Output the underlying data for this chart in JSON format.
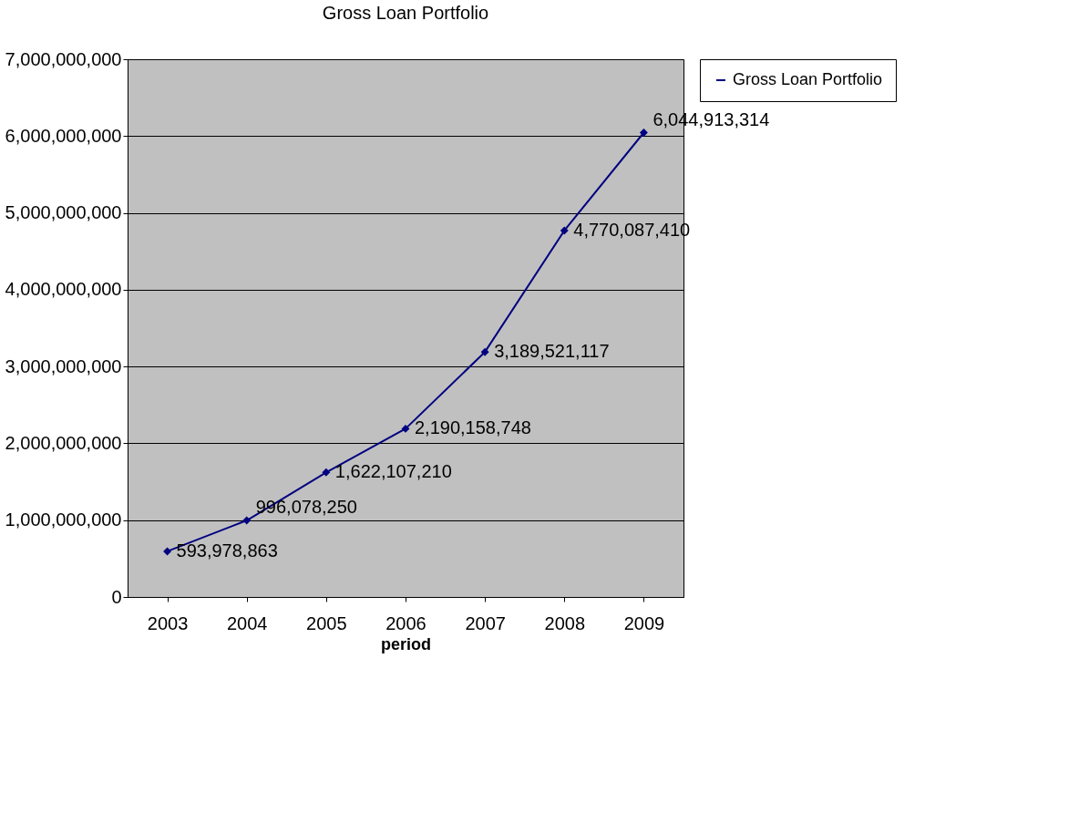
{
  "chart_data": {
    "type": "line",
    "title": "Gross Loan Portfolio",
    "xlabel": "period",
    "categories": [
      "2003",
      "2004",
      "2005",
      "2006",
      "2007",
      "2008",
      "2009"
    ],
    "series": [
      {
        "name": "Gross Loan Portfolio",
        "color": "#000080",
        "values": [
          593978863,
          996078250,
          1622107210,
          2190158748,
          3189521117,
          4770087410,
          6044913314
        ],
        "value_labels": [
          "593,978,863",
          "996,078,250",
          "1,622,107,210",
          "2,190,158,748",
          "3,189,521,117",
          "4,770,087,410",
          "6,044,913,314"
        ]
      }
    ],
    "ylim": [
      0,
      7000000000
    ],
    "yticks": [
      0,
      {
        "value": 1000000000,
        "label": "1,000,000,000"
      },
      {
        "value": 2000000000,
        "label": "2,000,000,000"
      },
      {
        "value": 3000000000,
        "label": "3,000,000,000"
      },
      {
        "value": 4000000000,
        "label": "4,000,000,000"
      },
      {
        "value": 5000000000,
        "label": "5,000,000,000"
      },
      {
        "value": 6000000000,
        "label": "6,000,000,000"
      },
      {
        "value": 7000000000,
        "label": "7,000,000,000"
      }
    ],
    "grid": "y",
    "legend": "right",
    "marker": "diamond",
    "line_style": "solid"
  }
}
